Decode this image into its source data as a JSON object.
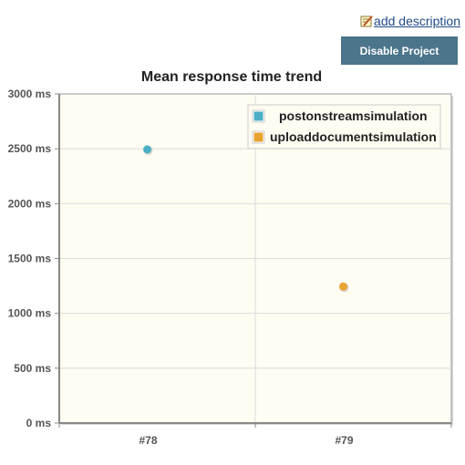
{
  "header": {
    "add_description_label": "add description",
    "disable_project_label": "Disable Project",
    "edit_icon": "edit-note-icon"
  },
  "chart_data": {
    "type": "scatter",
    "title": "Mean response time trend",
    "categories": [
      "#78",
      "#79"
    ],
    "y_ticks": [
      "0 ms",
      "500 ms",
      "1000 ms",
      "1500 ms",
      "2000 ms",
      "2500 ms",
      "3000 ms"
    ],
    "ylim": [
      0,
      3000
    ],
    "grid": true,
    "legend_position": "top-right",
    "series": [
      {
        "name": "postonstreamsimulation",
        "color": "#4bb0c6",
        "values": [
          2490,
          null
        ]
      },
      {
        "name": "uploaddocumentsimulation",
        "color": "#e8a431",
        "values": [
          null,
          1240
        ]
      }
    ]
  }
}
